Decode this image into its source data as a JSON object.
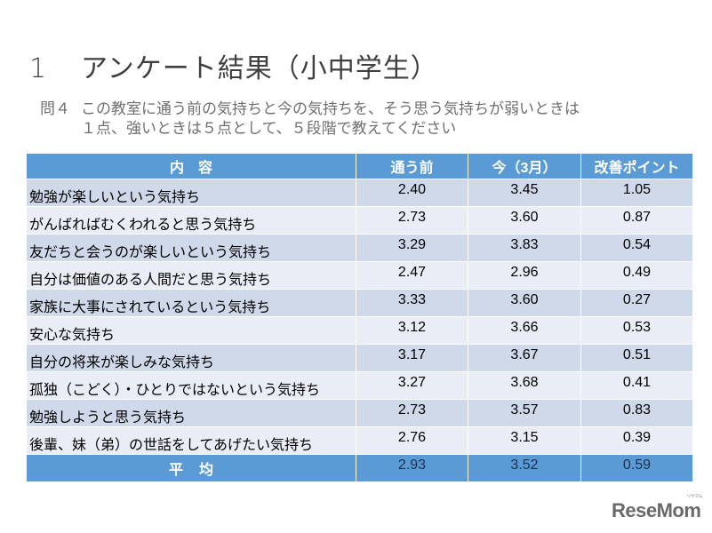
{
  "slide": {
    "section_number": "1",
    "title": "アンケート結果（小中学生）",
    "question_label": "問４",
    "question_line1": "この教室に通う前の気持ちと今の気持ちを、そう思う気持ちが弱いときは",
    "question_line2": "１点、強いときは５点として、５段階で教えてください"
  },
  "table": {
    "headers": [
      "内　容",
      "通う前",
      "今（3月）",
      "改善ポイント"
    ],
    "rows": [
      {
        "label": "勉強が楽しいという気持ち",
        "before": "2.40",
        "now": "3.45",
        "improvement": "1.05"
      },
      {
        "label": "がんばればむくわれると思う気持ち",
        "before": "2.73",
        "now": "3.60",
        "improvement": "0.87"
      },
      {
        "label": "友だちと会うのが楽しいという気持ち",
        "before": "3.29",
        "now": "3.83",
        "improvement": "0.54"
      },
      {
        "label": "自分は価値のある人間だと思う気持ち",
        "before": "2.47",
        "now": "2.96",
        "improvement": "0.49"
      },
      {
        "label": "家族に大事にされているという気持ち",
        "before": "3.33",
        "now": "3.60",
        "improvement": "0.27"
      },
      {
        "label": "安心な気持ち",
        "before": "3.12",
        "now": "3.66",
        "improvement": "0.53"
      },
      {
        "label": "自分の将来が楽しみな気持ち",
        "before": "3.17",
        "now": "3.67",
        "improvement": "0.51"
      },
      {
        "label": "孤独（こどく）・ひとりではないという気持ち",
        "before": "3.27",
        "now": "3.68",
        "improvement": "0.41"
      },
      {
        "label": "勉強しようと思う気持ち",
        "before": "2.73",
        "now": "3.57",
        "improvement": "0.83"
      },
      {
        "label": "後輩、妹（弟）の世話をしてあげたい気持ち",
        "before": "2.76",
        "now": "3.15",
        "improvement": "0.39"
      }
    ],
    "average": {
      "label": "平均",
      "before": "2.93",
      "now": "3.52",
      "improvement": "0.59"
    }
  },
  "watermark": {
    "text": "ReseMom",
    "kana": "リセマム"
  },
  "colors": {
    "header_bg": "#5b9bd5",
    "row_dark": "#cfd9ea",
    "row_light": "#e9edf5"
  }
}
